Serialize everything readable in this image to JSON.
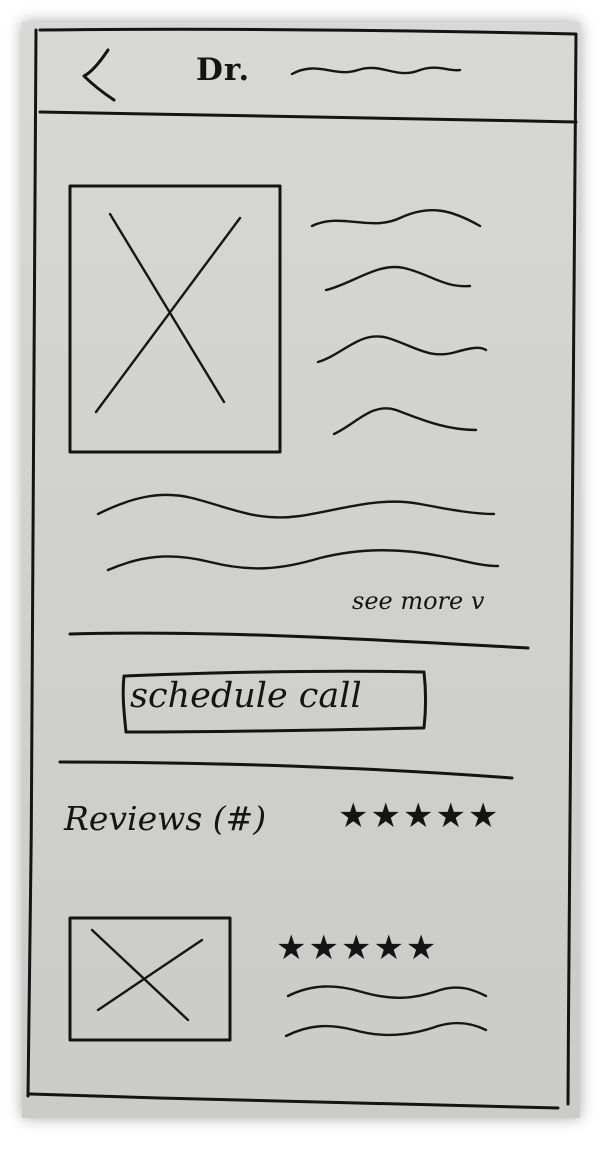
{
  "header": {
    "back_icon": "chevron-left-icon",
    "title_prefix": "Dr."
  },
  "profile": {
    "see_more_label": "see more v"
  },
  "actions": {
    "schedule_label": "schedule call"
  },
  "reviews": {
    "heading": "Reviews (#)",
    "summary_stars": "★★★★★",
    "summary_rating": 5,
    "review_item": {
      "stars": "★★★★★",
      "rating": 5
    }
  }
}
